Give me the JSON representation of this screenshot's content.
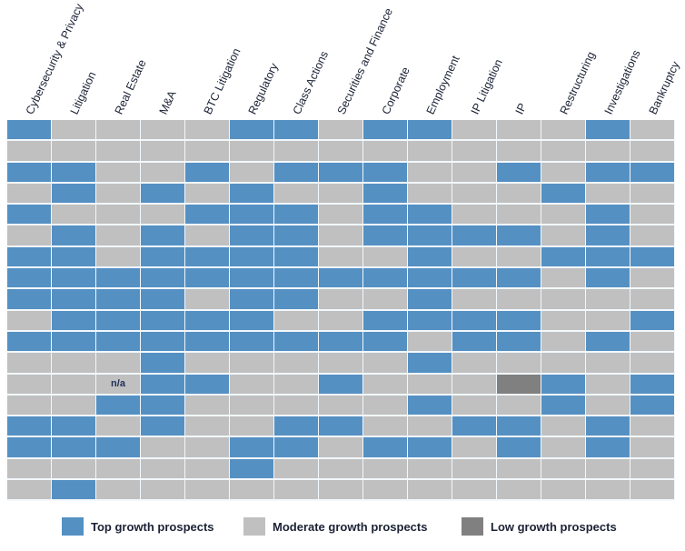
{
  "chart_data": {
    "type": "heatmap",
    "title": "",
    "columns": [
      "Cybersecurity & Privacy",
      "Litigation",
      "Real Estate",
      "M&A",
      "BTC Litigation",
      "Regulatory",
      "Class Actions",
      "Securities and Finance",
      "Corporate",
      "Employment",
      "IP Litigation",
      "IP",
      "Restructuring",
      "Investigations",
      "Bankruptcy"
    ],
    "legend": [
      {
        "key": "T",
        "label": "Top growth prospects",
        "color": "#5590c3"
      },
      {
        "key": "M",
        "label": "Moderate growth prospects",
        "color": "#c0c0c0"
      },
      {
        "key": "L",
        "label": "Low growth prospects",
        "color": "#808080"
      }
    ],
    "na_label": "n/a",
    "legend_placement": "bottom",
    "rows": [
      [
        "T",
        "M",
        "M",
        "M",
        "M",
        "T",
        "T",
        "M",
        "T",
        "T",
        "M",
        "M",
        "M",
        "T",
        "M"
      ],
      [
        "M",
        "M",
        "M",
        "M",
        "M",
        "M",
        "M",
        "M",
        "M",
        "M",
        "M",
        "M",
        "M",
        "M",
        "M"
      ],
      [
        "T",
        "T",
        "M",
        "M",
        "T",
        "M",
        "T",
        "T",
        "T",
        "M",
        "M",
        "T",
        "M",
        "T",
        "T"
      ],
      [
        "M",
        "T",
        "M",
        "T",
        "M",
        "T",
        "M",
        "M",
        "T",
        "M",
        "M",
        "M",
        "T",
        "M",
        "M"
      ],
      [
        "T",
        "M",
        "M",
        "M",
        "T",
        "T",
        "T",
        "M",
        "T",
        "T",
        "M",
        "M",
        "M",
        "T",
        "M"
      ],
      [
        "M",
        "T",
        "M",
        "T",
        "M",
        "T",
        "T",
        "M",
        "T",
        "T",
        "T",
        "T",
        "M",
        "T",
        "M"
      ],
      [
        "T",
        "T",
        "M",
        "T",
        "T",
        "T",
        "T",
        "M",
        "M",
        "T",
        "M",
        "M",
        "T",
        "T",
        "T"
      ],
      [
        "T",
        "T",
        "T",
        "T",
        "T",
        "T",
        "T",
        "T",
        "T",
        "T",
        "T",
        "T",
        "M",
        "T",
        "M"
      ],
      [
        "T",
        "T",
        "T",
        "T",
        "M",
        "T",
        "T",
        "M",
        "M",
        "T",
        "M",
        "M",
        "M",
        "M",
        "M"
      ],
      [
        "M",
        "T",
        "T",
        "T",
        "T",
        "T",
        "M",
        "M",
        "T",
        "T",
        "T",
        "T",
        "M",
        "M",
        "T"
      ],
      [
        "T",
        "T",
        "T",
        "T",
        "T",
        "T",
        "T",
        "T",
        "T",
        "M",
        "T",
        "T",
        "M",
        "T",
        "M"
      ],
      [
        "M",
        "M",
        "M",
        "T",
        "M",
        "M",
        "M",
        "M",
        "M",
        "T",
        "M",
        "M",
        "M",
        "M",
        "M"
      ],
      [
        "M",
        "M",
        "NA",
        "T",
        "T",
        "M",
        "M",
        "T",
        "M",
        "M",
        "M",
        "L",
        "T",
        "M",
        "T"
      ],
      [
        "M",
        "M",
        "T",
        "T",
        "M",
        "M",
        "M",
        "M",
        "M",
        "T",
        "M",
        "M",
        "T",
        "M",
        "T"
      ],
      [
        "T",
        "T",
        "M",
        "T",
        "M",
        "M",
        "T",
        "T",
        "M",
        "M",
        "T",
        "T",
        "M",
        "T",
        "M"
      ],
      [
        "T",
        "T",
        "T",
        "M",
        "M",
        "T",
        "T",
        "M",
        "T",
        "T",
        "M",
        "T",
        "M",
        "T",
        "M"
      ],
      [
        "M",
        "M",
        "M",
        "M",
        "M",
        "T",
        "M",
        "M",
        "M",
        "M",
        "M",
        "M",
        "M",
        "M",
        "M"
      ],
      [
        "M",
        "T",
        "M",
        "M",
        "M",
        "M",
        "M",
        "M",
        "M",
        "M",
        "M",
        "M",
        "M",
        "M",
        "M"
      ]
    ]
  }
}
